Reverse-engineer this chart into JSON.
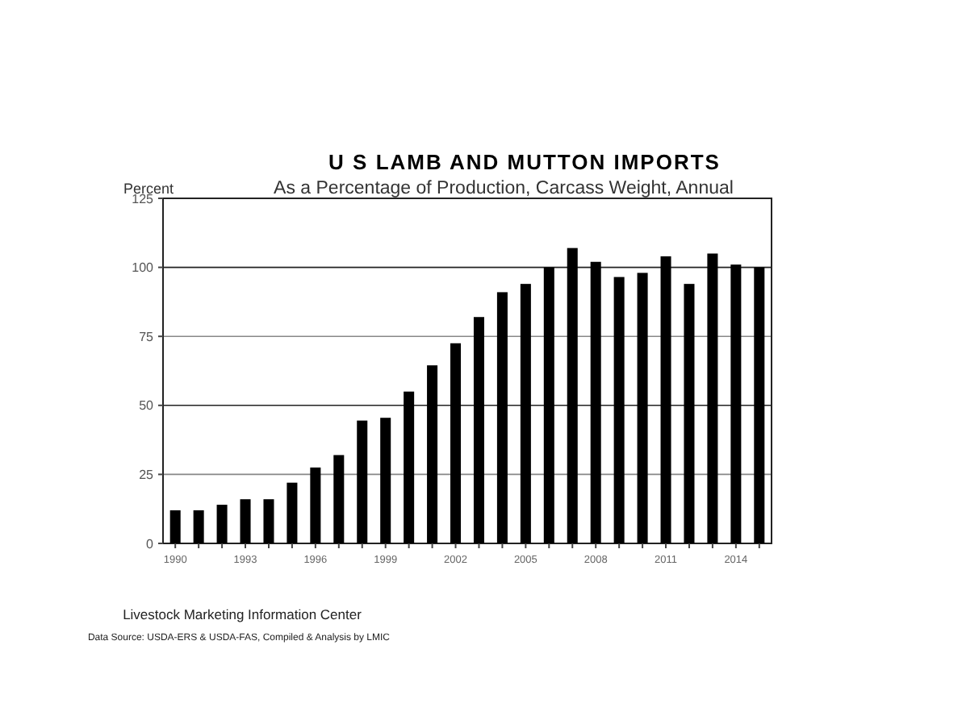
{
  "chart_data": {
    "type": "bar",
    "title": "U S LAMB AND MUTTON IMPORTS",
    "subtitle": "As a Percentage of Production, Carcass Weight, Annual",
    "ylabel": "Percent",
    "categories": [
      "1990",
      null,
      null,
      "1993",
      null,
      null,
      "1996",
      null,
      null,
      "1999",
      null,
      null,
      "2002",
      null,
      null,
      "2005",
      null,
      null,
      "2008",
      null,
      null,
      "2011",
      null,
      null,
      "2014",
      null
    ],
    "values": [
      12,
      12,
      14,
      16,
      16,
      22,
      27.5,
      32,
      44.5,
      45.5,
      55,
      64.5,
      72.5,
      82,
      91,
      94,
      100,
      107,
      102,
      96.5,
      98,
      104,
      94,
      105,
      101,
      100
    ],
    "color": "#000000",
    "ylim": [
      0,
      125
    ],
    "yticks": [
      0,
      25,
      50,
      75,
      100,
      125
    ],
    "grid": "y",
    "annotations": [
      "Livestock Marketing Information Center",
      "Data Source:  USDA-ERS & USDA-FAS, Compiled & Analysis by LMIC"
    ]
  }
}
